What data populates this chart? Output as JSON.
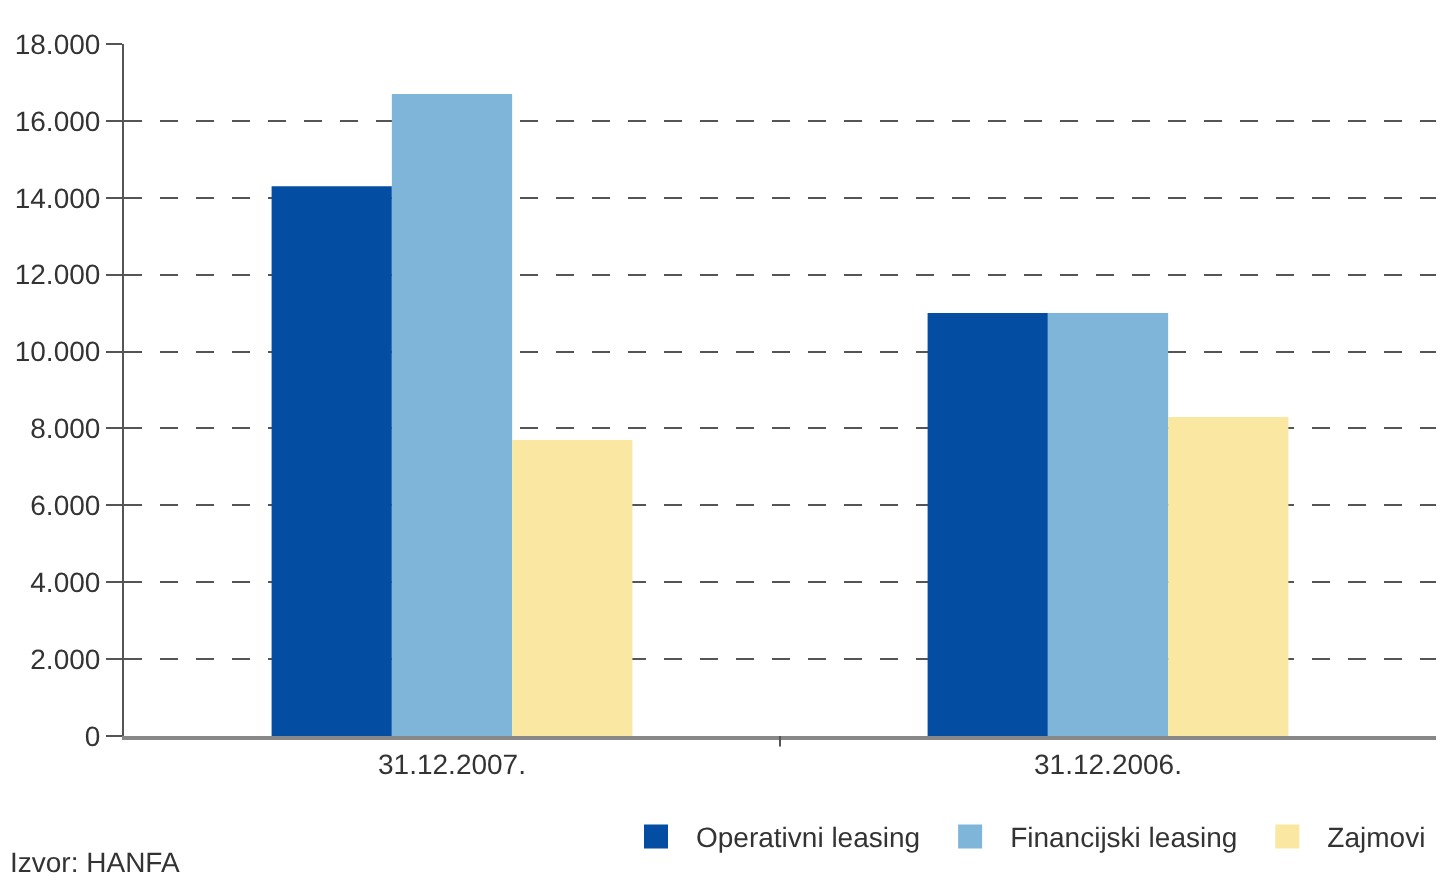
{
  "chart_data": {
    "type": "bar",
    "categories": [
      "31.12.2007.",
      "31.12.2006."
    ],
    "series": [
      {
        "name": "Operativni leasing",
        "color": "#034ea2",
        "values": [
          14300,
          11000
        ]
      },
      {
        "name": "Financijski leasing",
        "color": "#7fb5d9",
        "values": [
          16700,
          11000
        ]
      },
      {
        "name": "Zajmovi",
        "color": "#f9e7a2",
        "values": [
          7700,
          8300
        ]
      }
    ],
    "ylim": [
      0,
      18000
    ],
    "yticks": [
      {
        "value": 0,
        "label": "0"
      },
      {
        "value": 2000,
        "label": "2.000"
      },
      {
        "value": 4000,
        "label": "4.000"
      },
      {
        "value": 6000,
        "label": "6.000"
      },
      {
        "value": 8000,
        "label": "8.000"
      },
      {
        "value": 10000,
        "label": "10.000"
      },
      {
        "value": 12000,
        "label": "12.000"
      },
      {
        "value": 14000,
        "label": "14.000"
      },
      {
        "value": 16000,
        "label": "16.000"
      },
      {
        "value": 18000,
        "label": "18.000"
      }
    ],
    "grid": "y",
    "legend": "bottom right",
    "annotations": [
      "Izvor: HANFA"
    ]
  }
}
